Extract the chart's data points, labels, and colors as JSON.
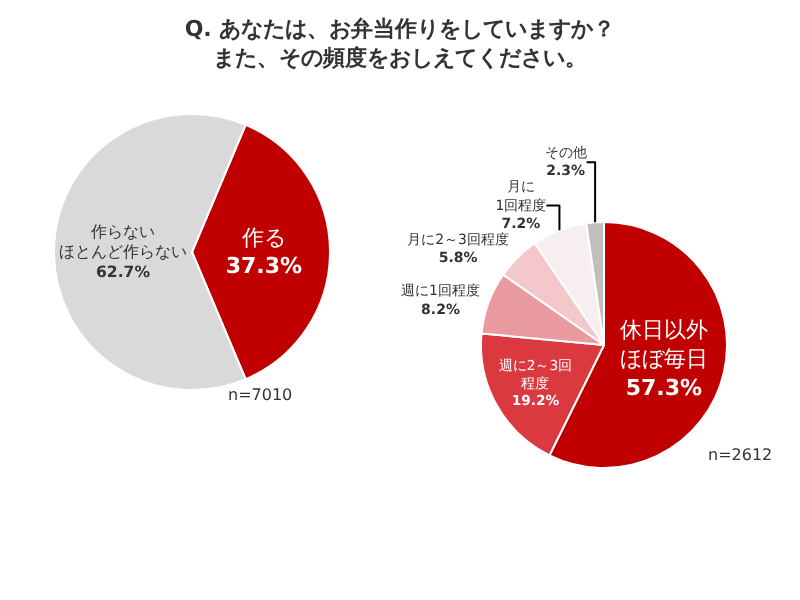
{
  "chart_data": [
    {
      "type": "pie",
      "title": "Q. あなたは、お弁当作りをしていますか？また、その頻度をおしえてください。",
      "categories": [
        "作る",
        "作らないほとんど作らない"
      ],
      "values": [
        37.3,
        62.7
      ],
      "value_labels": [
        "37.3%",
        "62.7%"
      ],
      "colors": [
        "#c00000",
        "#d9d9d9"
      ],
      "annotations": [
        "n=7010"
      ]
    },
    {
      "type": "pie",
      "categories": [
        "休日以外ほぼ毎日",
        "週に2～3回程度",
        "週に1回程度",
        "月に2～3回程度",
        "月に1回程度",
        "その他"
      ],
      "values": [
        57.3,
        19.2,
        8.2,
        5.8,
        7.2,
        2.3
      ],
      "value_labels": [
        "57.3%",
        "19.2%",
        "8.2%",
        "5.8%",
        "7.2%",
        "2.3%"
      ],
      "colors": [
        "#c00000",
        "#d9393f",
        "#e89a9f",
        "#f4c7ca",
        "#f7eef0",
        "#bfbfbf"
      ],
      "annotations": [
        "n=2612"
      ]
    }
  ]
}
